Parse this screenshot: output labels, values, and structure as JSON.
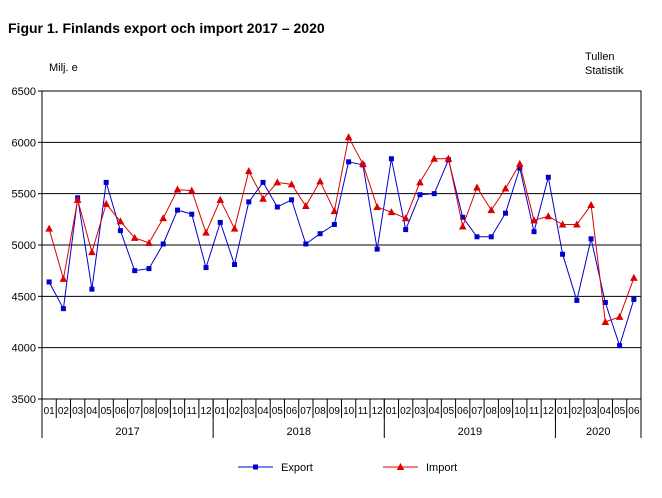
{
  "header": {
    "title": "Figur 1. Finlands export och import 2017 – 2020",
    "unit": "Milj. e",
    "source_line1": "Tullen",
    "source_line2": "Statistik"
  },
  "chart_data": {
    "type": "line",
    "title": "Figur 1. Finlands export och import 2017 – 2020",
    "ylabel": "Milj. e",
    "xlabel": "",
    "ylim": [
      3500,
      6500
    ],
    "yticks": [
      3500,
      4000,
      4500,
      5000,
      5500,
      6000,
      6500
    ],
    "grid": true,
    "legend_position": "bottom",
    "categories": [
      "01",
      "02",
      "03",
      "04",
      "05",
      "06",
      "07",
      "08",
      "09",
      "10",
      "11",
      "12",
      "01",
      "02",
      "03",
      "04",
      "05",
      "06",
      "07",
      "08",
      "09",
      "10",
      "11",
      "12",
      "01",
      "02",
      "03",
      "04",
      "05",
      "06",
      "07",
      "08",
      "09",
      "10",
      "11",
      "12",
      "01",
      "02",
      "03",
      "04",
      "05",
      "06"
    ],
    "year_groups": [
      {
        "label": "2017",
        "months": 12
      },
      {
        "label": "2018",
        "months": 12
      },
      {
        "label": "2019",
        "months": 12
      },
      {
        "label": "2020",
        "months": 6
      }
    ],
    "series": [
      {
        "name": "Export",
        "color": "#0000cc",
        "marker": "square",
        "values": [
          4640,
          4380,
          5460,
          4570,
          5610,
          5140,
          4750,
          4770,
          5010,
          5340,
          5300,
          4780,
          5220,
          4810,
          5420,
          5610,
          5370,
          5440,
          5010,
          5110,
          5200,
          5810,
          5780,
          4960,
          5840,
          5150,
          5490,
          5500,
          5830,
          5270,
          5080,
          5080,
          5310,
          5750,
          5130,
          5660,
          4910,
          4460,
          5060,
          4440,
          4020,
          4470
        ]
      },
      {
        "name": "Import",
        "color": "#dd0000",
        "marker": "triangle",
        "values": [
          5160,
          4670,
          5440,
          4930,
          5400,
          5230,
          5070,
          5020,
          5260,
          5540,
          5530,
          5120,
          5440,
          5160,
          5720,
          5450,
          5610,
          5590,
          5380,
          5620,
          5330,
          6050,
          5790,
          5370,
          5320,
          5260,
          5610,
          5840,
          5840,
          5180,
          5560,
          5340,
          5550,
          5790,
          5240,
          5280,
          5200,
          5200,
          5390,
          4250,
          4300,
          4680
        ]
      }
    ]
  }
}
